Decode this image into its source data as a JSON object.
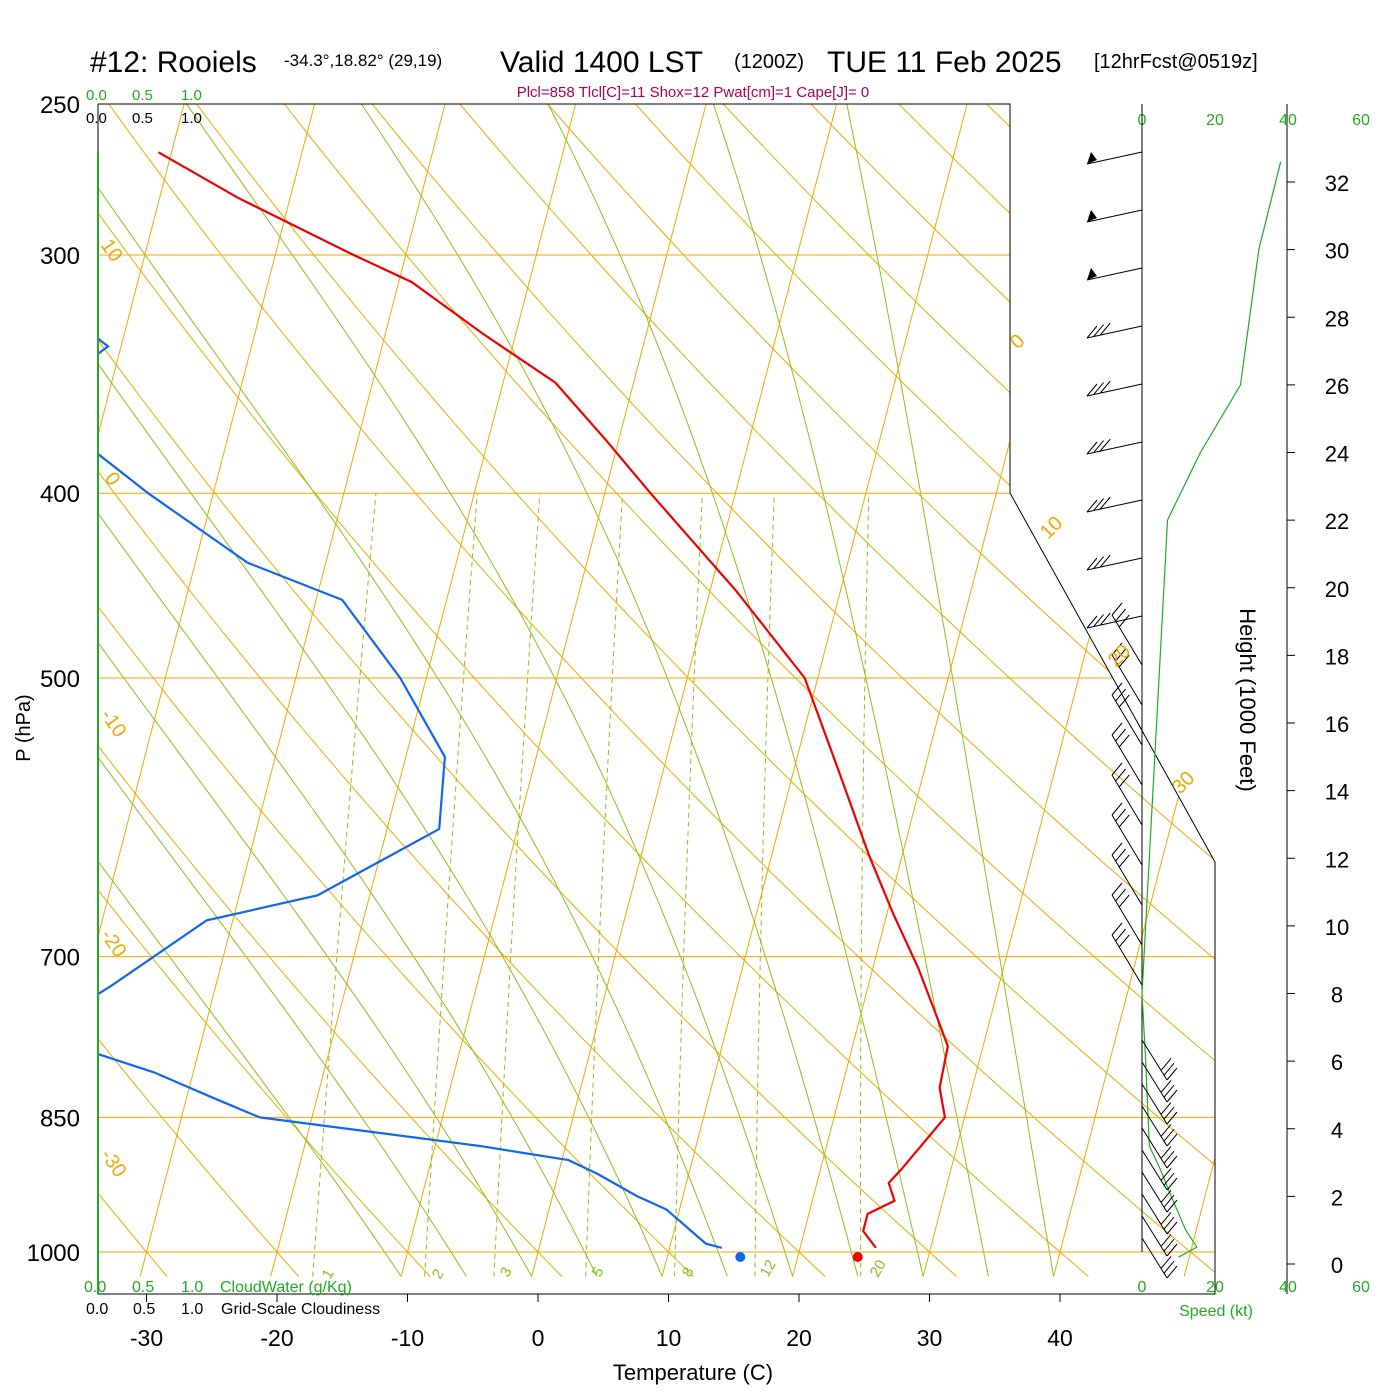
{
  "header": {
    "station": "#12: Rooiels",
    "coords": "-34.3°,18.82° (29,19)",
    "valid": "Valid 1400 LST",
    "zulu": "(1200Z)",
    "date": "TUE 11 Feb 2025",
    "forecast": "[12hrFcst@0519z]"
  },
  "indices": "Plcl=858 Tlcl[C]=11 Shox=12 Pwat[cm]=1 Cape[J]= 0",
  "cloud_scale": {
    "ticks": [
      "0.0",
      "0.5",
      "1.0"
    ],
    "top_label": "",
    "cloud_water_label": "CloudWater (g/Kg)",
    "cloudiness_label": "Grid-Scale Cloudiness"
  },
  "axes": {
    "xlabel": "Temperature (C)",
    "ylabel": "P (hPa)",
    "height_label": "Height (1000 Feet)",
    "speed_label": "Speed (kt)"
  },
  "colors": {
    "temperature": "#ee0000",
    "dewpoint": "#1166ee",
    "isotherm_dryadiabat": "#f0a800",
    "moist_adiabat": "#88c020",
    "mixing_ratio": "#88c020",
    "cloud_scale": "#22aa22",
    "indices_text": "#aa0055",
    "wind_speed": "#22aa22"
  },
  "chart_data": {
    "type": "skew-t",
    "pressure_ticks": [
      250,
      300,
      400,
      500,
      700,
      850,
      1000
    ],
    "temperature_ticks": [
      -30,
      -20,
      -10,
      0,
      10,
      20,
      30,
      40
    ],
    "xlim": [
      -33,
      37
    ],
    "plim": [
      250,
      1030
    ],
    "skew_degrees_per_decade_pressure": 38,
    "isotherm_labels": [
      "10",
      "0",
      "-10",
      "-20",
      "-30",
      "0",
      "10",
      "20",
      "30"
    ],
    "mixing_ratio_labels": [
      "1",
      "2",
      "3",
      "5",
      "8",
      "12",
      "20"
    ],
    "height_ticks": [
      0,
      2,
      4,
      6,
      8,
      10,
      12,
      14,
      16,
      18,
      20,
      22,
      24,
      26,
      28,
      30,
      32
    ],
    "speed_ticks": [
      0,
      20,
      40,
      60
    ],
    "series": [
      {
        "name": "Temperature",
        "points": [
          [
            25.8,
            995
          ],
          [
            24.5,
            975
          ],
          [
            24.5,
            955
          ],
          [
            26.3,
            940
          ],
          [
            25.5,
            920
          ],
          [
            26.2,
            905
          ],
          [
            28.5,
            850
          ],
          [
            27.5,
            820
          ],
          [
            27.3,
            780
          ],
          [
            26,
            755
          ],
          [
            23.5,
            710
          ],
          [
            20.5,
            665
          ],
          [
            17.5,
            620
          ],
          [
            13.5,
            560
          ],
          [
            9,
            500
          ],
          [
            2,
            450
          ],
          [
            -6.5,
            400
          ],
          [
            -11,
            375
          ],
          [
            -16,
            350
          ],
          [
            -22.5,
            330
          ],
          [
            -29,
            310
          ],
          [
            -34,
            300
          ],
          [
            -44,
            280
          ],
          [
            -51,
            265
          ]
        ]
      },
      {
        "name": "Dewpoint",
        "points": [
          [
            14,
            995
          ],
          [
            12.7,
            990
          ],
          [
            9,
            950
          ],
          [
            6.5,
            935
          ],
          [
            3,
            910
          ],
          [
            0.5,
            895
          ],
          [
            -6.5,
            880
          ],
          [
            -24,
            850
          ],
          [
            -28,
            830
          ],
          [
            -33,
            805
          ],
          [
            -41,
            775
          ],
          [
            -42,
            760
          ],
          [
            -38,
            725
          ],
          [
            -32,
            670
          ],
          [
            -24,
            650
          ],
          [
            -16,
            600
          ],
          [
            -17,
            550
          ],
          [
            -22,
            500
          ],
          [
            -28,
            455
          ],
          [
            -36,
            435
          ],
          [
            -45,
            400
          ],
          [
            -50,
            380
          ],
          [
            -52,
            370
          ],
          [
            -54,
            350
          ],
          [
            -51,
            335
          ],
          [
            -57,
            315
          ],
          [
            -61,
            300
          ],
          [
            -67,
            285
          ],
          [
            -73,
            265
          ]
        ]
      }
    ],
    "surface_markers": {
      "temperature": 24.5,
      "dewpoint": 15.5,
      "pressure": 1000
    },
    "wind_speed_profile": [
      [
        10,
        0.2
      ],
      [
        15,
        0.5
      ],
      [
        12,
        1
      ],
      [
        8,
        2
      ],
      [
        5,
        2.8
      ],
      [
        2,
        3.5
      ],
      [
        1,
        6
      ],
      [
        0,
        8
      ],
      [
        2,
        12
      ],
      [
        6,
        20
      ],
      [
        7,
        22
      ],
      [
        16,
        24
      ],
      [
        27,
        26
      ],
      [
        32,
        30
      ],
      [
        38,
        32.6
      ]
    ]
  }
}
